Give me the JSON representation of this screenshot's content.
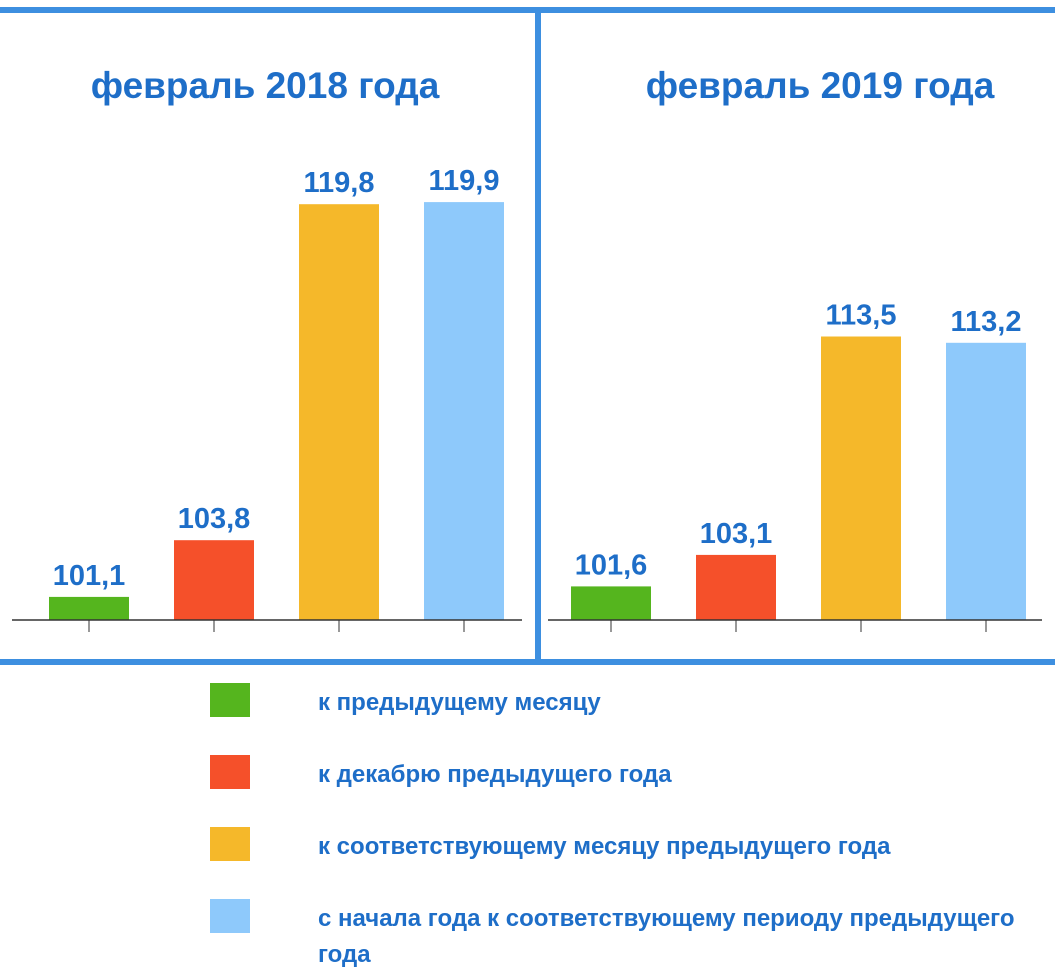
{
  "chart_data": [
    {
      "type": "bar",
      "title": "февраль 2018 года",
      "categories": [
        null,
        null,
        null,
        null
      ],
      "values": [
        101.1,
        103.8,
        119.8,
        119.9
      ],
      "value_labels": [
        "101,1",
        "103,8",
        "119,8",
        "119,9"
      ],
      "ylim": [
        100,
        120
      ]
    },
    {
      "type": "bar",
      "title": "февраль 2019 года",
      "categories": [
        null,
        null,
        null,
        null
      ],
      "values": [
        101.6,
        103.1,
        113.5,
        113.2
      ],
      "value_labels": [
        "101,6",
        "103,1",
        "113,5",
        "113,2"
      ],
      "ylim": [
        100,
        120
      ]
    }
  ],
  "legend": {
    "items": [
      {
        "name": "к предыдущему месяцу",
        "color": "#55b51e"
      },
      {
        "name": "к декабрю предыдущего года",
        "color": "#f5502a"
      },
      {
        "name": "к соответствующему месяцу предыдущего года",
        "color": "#f5b82a"
      },
      {
        "name": "с начала года к соответствующему периоду предыдущего года",
        "color": "#8ec9fb"
      }
    ]
  }
}
